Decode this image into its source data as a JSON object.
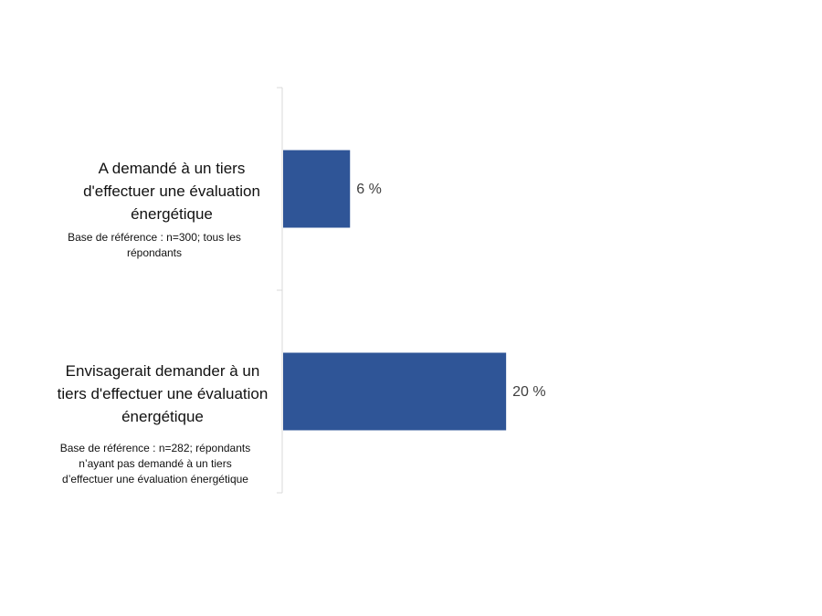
{
  "chart_data": {
    "type": "bar",
    "orientation": "horizontal",
    "categories": [
      "A demandé à un tiers d'effectuer une évaluation énergétique",
      "Envisagerait demander à un tiers d'effectuer une évaluation énergétique"
    ],
    "values": [
      6,
      20
    ],
    "data_labels": [
      "6 %",
      "20 %"
    ],
    "base_notes": [
      "Base de référence : n=300;  tous les répondants",
      "Base de référence : n=282; répondants n’ayant pas demandé à un tiers d’effectuer une évaluation énergétique"
    ],
    "xlim": [
      0,
      30
    ],
    "bar_color": "#2F5597",
    "grid": false,
    "legend": false
  }
}
